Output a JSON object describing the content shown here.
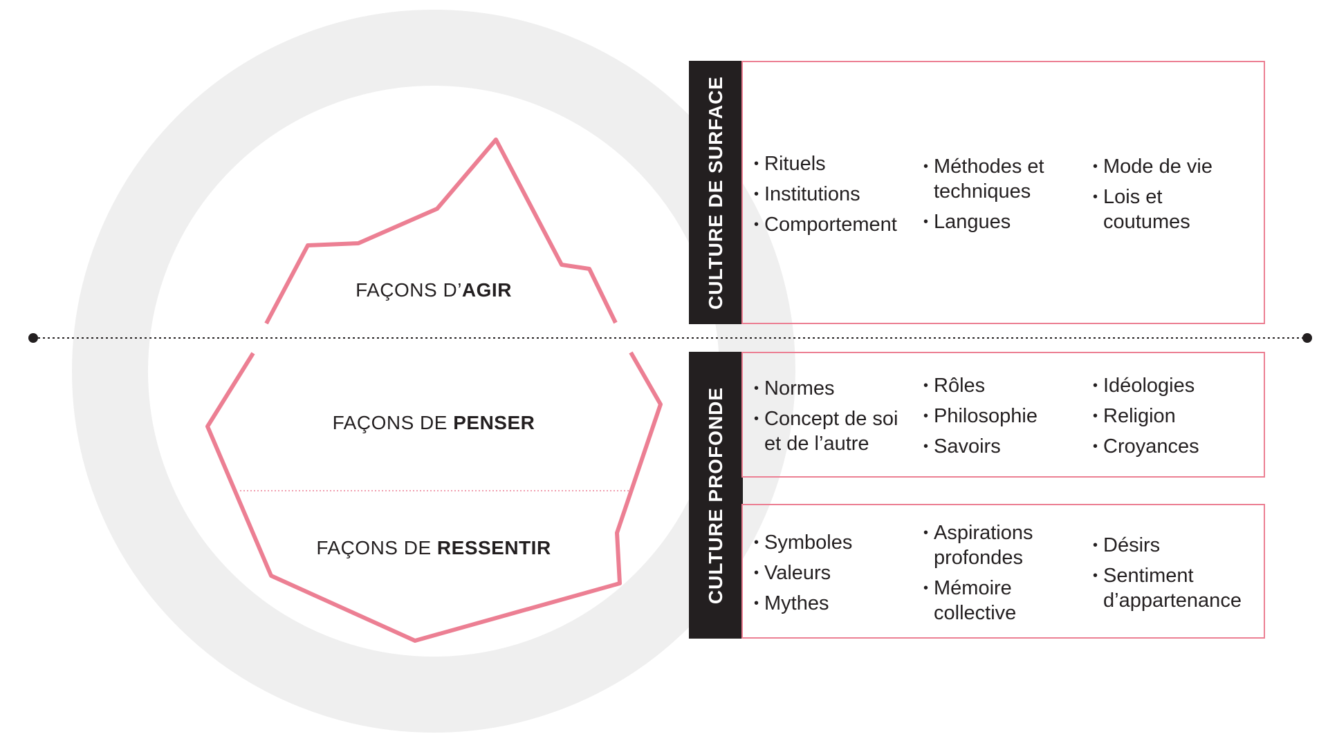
{
  "colors": {
    "accent": "#ec7f93",
    "dark": "#231f20",
    "circle": "#efefef",
    "text": "#231f20"
  },
  "iceberg": {
    "agir": {
      "prefix": "FAÇONS D’",
      "bold": "AGIR"
    },
    "penser": {
      "prefix": "FAÇONS DE ",
      "bold": "PENSER"
    },
    "ressentir": {
      "prefix": "FAÇONS DE ",
      "bold": "RESSENTIR"
    }
  },
  "surface": {
    "band_label": "CULTURE DE SURFACE",
    "col1": [
      "Rituels",
      "Institutions",
      "Comportement"
    ],
    "col2": [
      "Méthodes et techniques",
      "Langues"
    ],
    "col3": [
      "Mode de vie",
      "Lois et coutumes"
    ]
  },
  "profonde": {
    "band_label": "CULTURE PROFONDE",
    "top": {
      "col1": [
        "Normes",
        "Concept de soi et de l’autre"
      ],
      "col2": [
        "Rôles",
        "Philosophie",
        "Savoirs"
      ],
      "col3": [
        "Idéologies",
        "Religion",
        "Croyances"
      ]
    },
    "bottom": {
      "col1": [
        "Symboles",
        "Valeurs",
        "Mythes"
      ],
      "col2": [
        "Aspirations profondes",
        "Mémoire collective"
      ],
      "col3": [
        "Désirs",
        "Sentiment d’appartenance"
      ]
    }
  }
}
